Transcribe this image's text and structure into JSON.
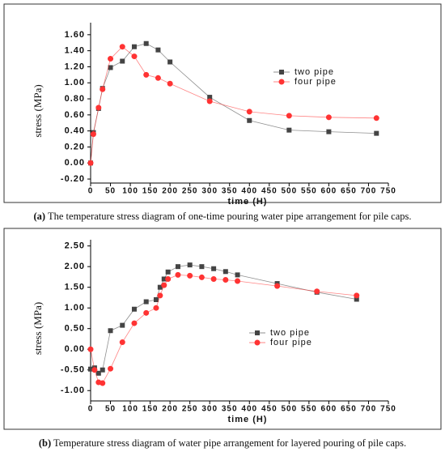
{
  "chart_data": [
    {
      "type": "line",
      "label": "(a)",
      "caption": "The temperature stress diagram of one-time pouring water pipe arrangement for pile caps.",
      "ylabel": "stress (MPa)",
      "xlabel": "time (H)",
      "x": [
        0,
        7,
        20,
        30,
        50,
        80,
        110,
        140,
        170,
        200,
        300,
        400,
        500,
        600,
        720
      ],
      "series": [
        {
          "name": "two pipe",
          "color": "#444444",
          "marker": "square",
          "values": [
            0,
            0.38,
            0.68,
            0.93,
            1.19,
            1.27,
            1.45,
            1.49,
            1.41,
            1.26,
            0.82,
            0.53,
            0.41,
            0.39,
            0.37
          ]
        },
        {
          "name": "four pipe",
          "color": "#ff3333",
          "marker": "circle",
          "values": [
            0,
            0.36,
            0.69,
            0.92,
            1.3,
            1.45,
            1.33,
            1.1,
            1.06,
            0.99,
            0.77,
            0.64,
            0.59,
            0.57,
            0.56
          ]
        }
      ],
      "xlim": [
        0,
        750
      ],
      "xticks": [
        0,
        50,
        100,
        150,
        200,
        250,
        300,
        350,
        400,
        450,
        500,
        550,
        600,
        650,
        700,
        750
      ],
      "ylim": [
        -0.25,
        1.75
      ],
      "yticks": [
        {
          "value": -0.2,
          "label": "-0.20"
        },
        {
          "value": 0,
          "label": "0.00"
        },
        {
          "value": 0.2,
          "label": "0.20"
        },
        {
          "value": 0.4,
          "label": "0.40"
        },
        {
          "value": 0.6,
          "label": "0.60"
        },
        {
          "value": 0.8,
          "label": "0.80"
        },
        {
          "value": 1.0,
          "label": "1.00"
        },
        {
          "value": 1.2,
          "label": "1.20"
        },
        {
          "value": 1.4,
          "label": "1.40"
        },
        {
          "value": 1.6,
          "label": "1.60"
        }
      ]
    },
    {
      "type": "line",
      "label": "(b)",
      "caption": "Temperature stress diagram of water pipe arrangement for layered pouring of pile caps.",
      "ylabel": "stress (MPa)",
      "xlabel": "time (H)",
      "x": [
        0,
        10,
        20,
        30,
        50,
        80,
        110,
        140,
        165,
        175,
        185,
        195,
        220,
        250,
        280,
        310,
        340,
        370,
        470,
        570,
        670
      ],
      "series": [
        {
          "name": "two pipe",
          "color": "#444444",
          "marker": "square",
          "values": [
            -0.48,
            -0.45,
            -0.58,
            -0.5,
            0.45,
            0.58,
            0.97,
            1.15,
            1.2,
            1.5,
            1.7,
            1.87,
            2.0,
            2.04,
            2.0,
            1.95,
            1.88,
            1.8,
            1.59,
            1.38,
            1.21
          ]
        },
        {
          "name": "four pipe",
          "color": "#ff3333",
          "marker": "circle",
          "values": [
            0,
            -0.5,
            -0.8,
            -0.82,
            -0.47,
            0.17,
            0.63,
            0.88,
            1.0,
            1.3,
            1.55,
            1.7,
            1.8,
            1.78,
            1.74,
            1.7,
            1.68,
            1.65,
            1.53,
            1.4,
            1.3
          ]
        }
      ],
      "xlim": [
        0,
        750
      ],
      "xticks": [
        0,
        50,
        100,
        150,
        200,
        250,
        300,
        350,
        400,
        450,
        500,
        550,
        600,
        650,
        700,
        750
      ],
      "ylim": [
        -1.25,
        2.65
      ],
      "yticks": [
        {
          "value": -1.0,
          "label": "-1.00"
        },
        {
          "value": -0.5,
          "label": "-0.50"
        },
        {
          "value": 0,
          "label": "0.00"
        },
        {
          "value": 0.5,
          "label": "0.50"
        },
        {
          "value": 1.0,
          "label": "1.00"
        },
        {
          "value": 1.5,
          "label": "1.50"
        },
        {
          "value": 2.0,
          "label": "2.00"
        },
        {
          "value": 2.5,
          "label": "2.50"
        }
      ]
    }
  ]
}
